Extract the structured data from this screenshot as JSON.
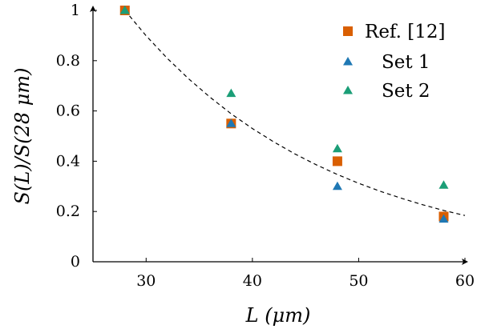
{
  "chart_data": {
    "type": "scatter",
    "title": "",
    "xlabel": "L  (μm)",
    "ylabel": "S(L)/S(28 μm)",
    "xlim": [
      25,
      60
    ],
    "ylim": [
      0,
      1
    ],
    "xticks": [
      30,
      40,
      50,
      60
    ],
    "yticks": [
      0,
      0.2,
      0.4,
      0.6,
      0.8,
      1
    ],
    "ytick_labels": [
      "0",
      "0.2",
      "0.4",
      "0.6",
      "0.8",
      "1"
    ],
    "grid": false,
    "legend_position": "top-right",
    "series": [
      {
        "name": "Ref. [12]",
        "marker": "square",
        "color": "#d95f02",
        "x": [
          28,
          38,
          48,
          58
        ],
        "y": [
          1.0,
          0.55,
          0.4,
          0.18
        ]
      },
      {
        "name": "Set 1",
        "marker": "triangle",
        "color": "#1f78b4",
        "x": [
          28,
          38,
          48,
          58
        ],
        "y": [
          1.0,
          0.55,
          0.3,
          0.17
        ]
      },
      {
        "name": "Set 2",
        "marker": "triangle",
        "color": "#1b9e77",
        "x": [
          28,
          38,
          48,
          58
        ],
        "y": [
          1.0,
          0.67,
          0.45,
          0.305
        ]
      }
    ],
    "fit_curve": {
      "style": "dashed",
      "color": "#000000",
      "x": [
        28,
        30,
        32,
        34,
        36,
        38,
        40,
        42,
        44,
        46,
        48,
        50,
        52,
        54,
        56,
        58,
        60
      ],
      "y": [
        1.0,
        0.899,
        0.809,
        0.728,
        0.655,
        0.589,
        0.53,
        0.477,
        0.429,
        0.386,
        0.347,
        0.312,
        0.281,
        0.253,
        0.227,
        0.204,
        0.184
      ]
    }
  }
}
